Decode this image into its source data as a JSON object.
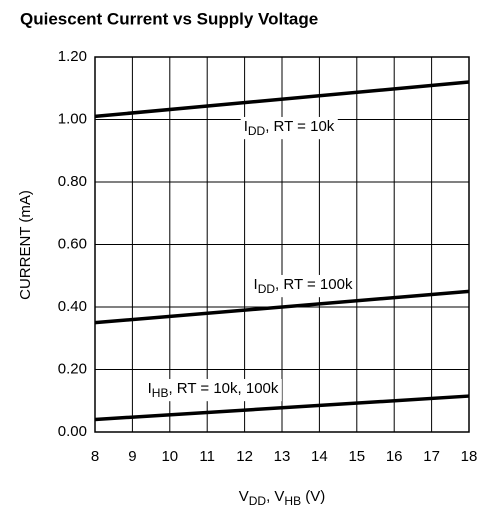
{
  "chart_data": {
    "type": "line",
    "title": "Quiescent Current vs Supply Voltage",
    "ylabel": "CURRENT (mA)",
    "xlabel": [
      "V",
      "DD",
      ", V",
      "HB",
      " (V)"
    ],
    "x": [
      8,
      18
    ],
    "series": [
      {
        "label": [
          "I",
          "DD",
          ", RT = 10k"
        ],
        "color": "#000000",
        "values": [
          1.01,
          1.12
        ]
      },
      {
        "label": [
          "I",
          "DD",
          ", RT = 100k"
        ],
        "color": "#000000",
        "values": [
          0.35,
          0.45
        ]
      },
      {
        "label": [
          "I",
          "HB",
          ", RT = 10k, 100k"
        ],
        "color": "#000000",
        "values": [
          0.04,
          0.115
        ]
      }
    ],
    "xlim": [
      8,
      18
    ],
    "xticks": [
      8,
      9,
      10,
      11,
      12,
      13,
      14,
      15,
      16,
      17,
      18
    ],
    "ylim": [
      0,
      1.2
    ],
    "yticks": [
      {
        "value": 0,
        "label": "0.00"
      },
      {
        "value": 0.2,
        "label": "0.20"
      },
      {
        "value": 0.4,
        "label": "0.40"
      },
      {
        "value": 0.6,
        "label": "0.60"
      },
      {
        "value": 0.8,
        "label": "0.80"
      },
      {
        "value": 1.0,
        "label": "1.00"
      },
      {
        "value": 1.2,
        "label": "1.20"
      }
    ],
    "grid": true
  }
}
